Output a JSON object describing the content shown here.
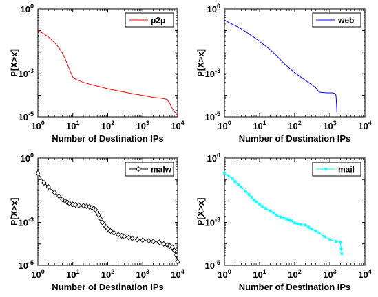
{
  "chart_data": [
    {
      "type": "line",
      "xscale": "log",
      "yscale": "log",
      "xlim": [
        1,
        10000
      ],
      "ylim": [
        1e-05,
        1
      ],
      "xticks": [
        1,
        10,
        100,
        1000,
        10000
      ],
      "xtick_labels": [
        {
          "base": "10",
          "exp": "0"
        },
        {
          "base": "10",
          "exp": "1"
        },
        {
          "base": "10",
          "exp": "2"
        },
        {
          "base": "10",
          "exp": "3"
        },
        {
          "base": "10",
          "exp": "4"
        }
      ],
      "yticks": [
        1e-05,
        0.001,
        1
      ],
      "ytick_labels": [
        {
          "base": "10",
          "exp": "-5"
        },
        {
          "base": "10",
          "exp": "-3"
        },
        {
          "base": "10",
          "exp": "0"
        }
      ],
      "xlabel": "Number of Destination IPs",
      "ylabel": "P[X>x]",
      "legend": "top-right",
      "series": [
        {
          "name": "p2p",
          "color": "#ff0000",
          "marker": "none",
          "x": [
            1,
            1.5,
            2,
            3,
            4,
            5,
            6,
            7,
            8,
            9,
            10,
            11,
            12,
            15,
            20,
            30,
            50,
            100,
            200,
            500,
            1000,
            2000,
            3000,
            4000,
            5000,
            6000,
            7000,
            8000,
            9000,
            10000
          ],
          "y": [
            0.1,
            0.07,
            0.05,
            0.028,
            0.016,
            0.009,
            0.005,
            0.0028,
            0.0016,
            0.001,
            0.0007,
            0.0006,
            0.00055,
            0.00048,
            0.0004,
            0.00033,
            0.00027,
            0.0002,
            0.00016,
            0.00012,
            0.0001,
            8e-05,
            7.5e-05,
            7e-05,
            6.5e-05,
            4e-05,
            2.5e-05,
            1.8e-05,
            1.4e-05,
            1.1e-05
          ]
        }
      ]
    },
    {
      "type": "line",
      "xscale": "log",
      "yscale": "log",
      "xlim": [
        1,
        10000
      ],
      "ylim": [
        1e-05,
        1
      ],
      "xticks": [
        1,
        10,
        100,
        1000,
        10000
      ],
      "xtick_labels": [
        {
          "base": "10",
          "exp": "0"
        },
        {
          "base": "10",
          "exp": "1"
        },
        {
          "base": "10",
          "exp": "2"
        },
        {
          "base": "10",
          "exp": "3"
        },
        {
          "base": "10",
          "exp": "4"
        }
      ],
      "yticks": [
        1e-05,
        0.001,
        1
      ],
      "ytick_labels": [
        {
          "base": "10",
          "exp": "-5"
        },
        {
          "base": "10",
          "exp": "-3"
        },
        {
          "base": "10",
          "exp": "0"
        }
      ],
      "xlabel": "Number of Destination IPs",
      "ylabel": "P[X>x]",
      "legend": "top-right",
      "series": [
        {
          "name": "web",
          "color": "#0000ff",
          "marker": "none",
          "x": [
            1,
            2,
            3,
            5,
            10,
            20,
            30,
            50,
            80,
            100,
            150,
            200,
            300,
            400,
            500,
            800,
            1000,
            1200,
            1400,
            1500,
            1550,
            1600
          ],
          "y": [
            0.3,
            0.17,
            0.12,
            0.07,
            0.032,
            0.013,
            0.007,
            0.003,
            0.0015,
            0.0011,
            0.0007,
            0.0005,
            0.00032,
            0.00022,
            0.00014,
            0.00013,
            0.00013,
            0.00013,
            0.00012,
            0.0001,
            4e-05,
            1.5e-05
          ]
        }
      ]
    },
    {
      "type": "line",
      "xscale": "log",
      "yscale": "log",
      "xlim": [
        1,
        10000
      ],
      "ylim": [
        1e-05,
        1
      ],
      "xticks": [
        1,
        10,
        100,
        1000,
        10000
      ],
      "xtick_labels": [
        {
          "base": "10",
          "exp": "0"
        },
        {
          "base": "10",
          "exp": "1"
        },
        {
          "base": "10",
          "exp": "2"
        },
        {
          "base": "10",
          "exp": "3"
        },
        {
          "base": "10",
          "exp": "4"
        }
      ],
      "yticks": [
        1e-05,
        0.001,
        1
      ],
      "ytick_labels": [
        {
          "base": "10",
          "exp": "-5"
        },
        {
          "base": "10",
          "exp": "-3"
        },
        {
          "base": "10",
          "exp": "0"
        }
      ],
      "xlabel": "Number of Destination IPs",
      "ylabel": "P[X>x]",
      "legend": "top-right",
      "series": [
        {
          "name": "malw",
          "color": "#000000",
          "marker": "diamond",
          "x": [
            1,
            1.5,
            2,
            3,
            4,
            5,
            6,
            7,
            8,
            10,
            12,
            15,
            20,
            25,
            30,
            35,
            40,
            45,
            50,
            55,
            60,
            70,
            80,
            90,
            100,
            120,
            150,
            200,
            250,
            300,
            400,
            500,
            700,
            1000,
            1500,
            2000,
            3000,
            4000,
            5000,
            6000,
            7000,
            8000,
            9000,
            10000
          ],
          "y": [
            0.2,
            0.07,
            0.045,
            0.025,
            0.017,
            0.012,
            0.01,
            0.0085,
            0.0078,
            0.007,
            0.0066,
            0.0063,
            0.006,
            0.0057,
            0.0054,
            0.005,
            0.0045,
            0.0038,
            0.003,
            0.0022,
            0.0016,
            0.001,
            0.00075,
            0.0006,
            0.0005,
            0.0004,
            0.00033,
            0.00027,
            0.00024,
            0.00022,
            0.0002,
            0.00018,
            0.00016,
            0.00015,
            0.00014,
            0.00013,
            0.00012,
            0.0001,
            9e-05,
            8e-05,
            7e-05,
            5e-05,
            3e-05,
            1.5e-05
          ]
        }
      ]
    },
    {
      "type": "line",
      "xscale": "log",
      "yscale": "log",
      "xlim": [
        1,
        10000
      ],
      "ylim": [
        1e-05,
        1
      ],
      "xticks": [
        1,
        10,
        100,
        1000,
        10000
      ],
      "xtick_labels": [
        {
          "base": "10",
          "exp": "0"
        },
        {
          "base": "10",
          "exp": "1"
        },
        {
          "base": "10",
          "exp": "2"
        },
        {
          "base": "10",
          "exp": "3"
        },
        {
          "base": "10",
          "exp": "4"
        }
      ],
      "yticks": [
        1e-05,
        0.001,
        1
      ],
      "ytick_labels": [
        {
          "base": "10",
          "exp": "-5"
        },
        {
          "base": "10",
          "exp": "-3"
        },
        {
          "base": "10",
          "exp": "0"
        }
      ],
      "xlabel": "Number of Destination IPs",
      "ylabel": "P[X>x]",
      "legend": "top-right",
      "series": [
        {
          "name": "mail",
          "color": "#00ffff",
          "marker": "star",
          "x": [
            1,
            1.3,
            1.7,
            2,
            2.5,
            3,
            4,
            5,
            6,
            7,
            8,
            10,
            12,
            15,
            20,
            25,
            30,
            40,
            50,
            60,
            70,
            80,
            100,
            120,
            150,
            200,
            250,
            300,
            400,
            500,
            700,
            1000,
            1500,
            2000,
            2100,
            2200
          ],
          "y": [
            0.2,
            0.15,
            0.11,
            0.08,
            0.06,
            0.045,
            0.028,
            0.02,
            0.015,
            0.011,
            0.009,
            0.007,
            0.0055,
            0.0045,
            0.0035,
            0.0028,
            0.0022,
            0.0018,
            0.0016,
            0.0014,
            0.0013,
            0.0012,
            0.00095,
            0.00085,
            0.0008,
            0.00075,
            0.0006,
            0.0005,
            0.0004,
            0.00032,
            0.00022,
            0.00016,
            0.00013,
            0.00012,
            6e-05,
            3.5e-05
          ]
        }
      ]
    }
  ]
}
